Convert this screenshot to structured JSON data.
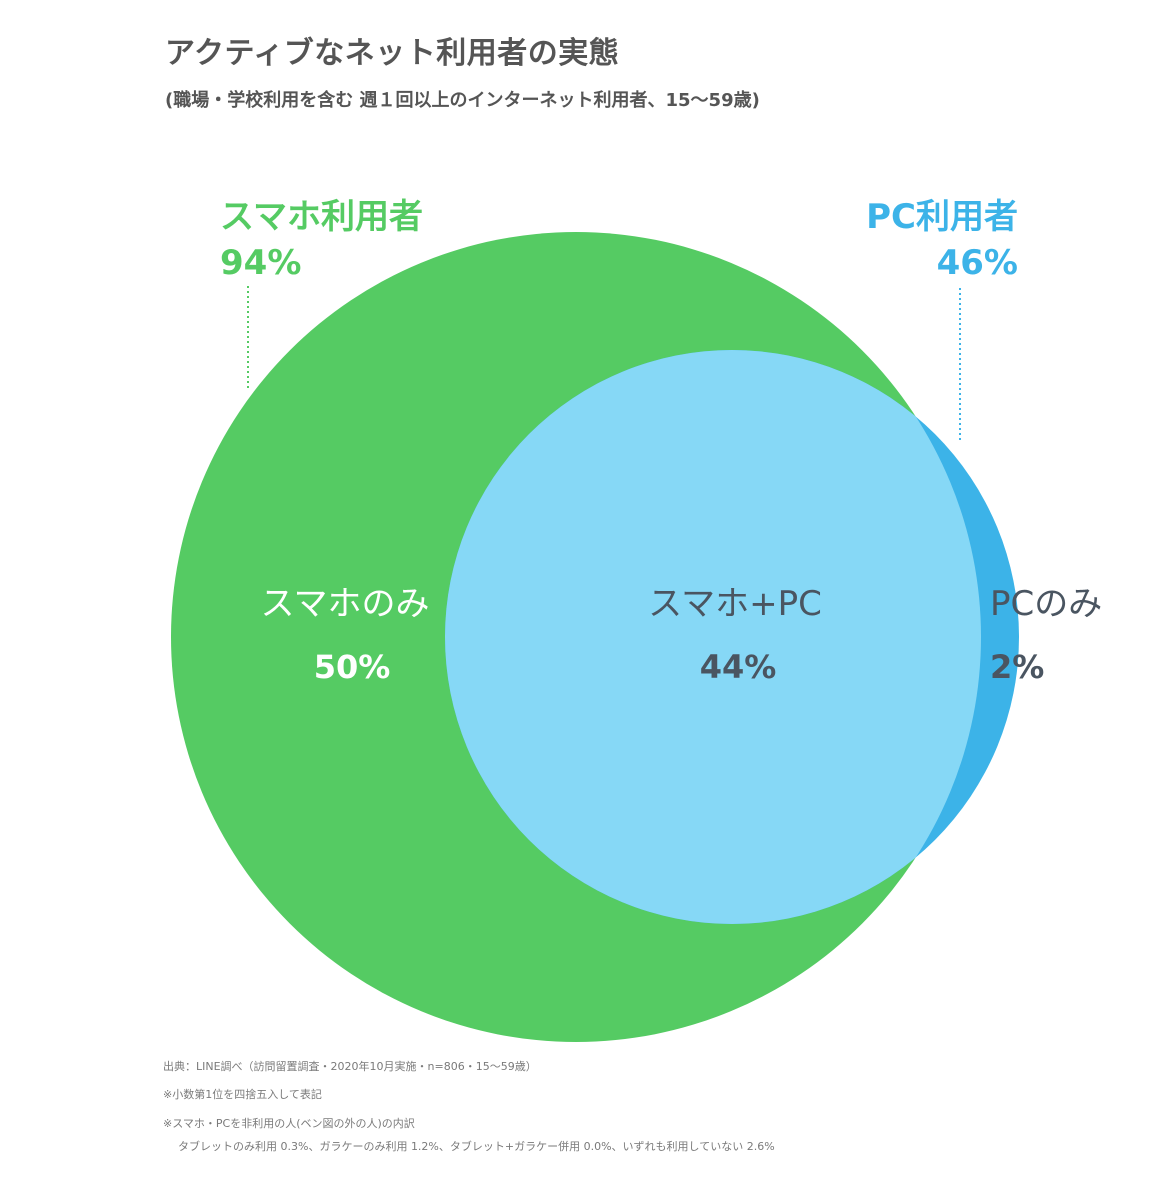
{
  "title": "アクティブなネット利用者の実態",
  "subtitle": "(職場・学校利用を含む 週１回以上のインターネット利用者、15〜59歳)",
  "colors": {
    "smartphone": "#55cb63",
    "pc": "#86d8f6",
    "pc_only": "#3cb3e8",
    "label_green": "#55cb63",
    "label_blue": "#3cb3e8",
    "label_dark": "#4a5561",
    "label_white": "#ffffff"
  },
  "chart_data": {
    "type": "venn",
    "sets": [
      {
        "name": "スマホ利用者",
        "value": "94%"
      },
      {
        "name": "PC利用者",
        "value": "46%"
      }
    ],
    "regions": [
      {
        "name": "スマホのみ",
        "value": "50%"
      },
      {
        "name": "スマホ+PC",
        "value": "44%"
      },
      {
        "name": "PCのみ",
        "value": "2%"
      }
    ]
  },
  "footnotes": [
    "出典：LINE調べ（訪問留置調査・2020年10月実施・n=806・15〜59歳）",
    "※小数第1位を四捨五入して表記",
    "※スマホ・PCを非利用の人(ベン図の外の人)の内訳",
    "タブレットのみ利用 0.3%、ガラケーのみ利用 1.2%、タブレット+ガラケー併用 0.0%、いずれも利用していない 2.6%"
  ]
}
